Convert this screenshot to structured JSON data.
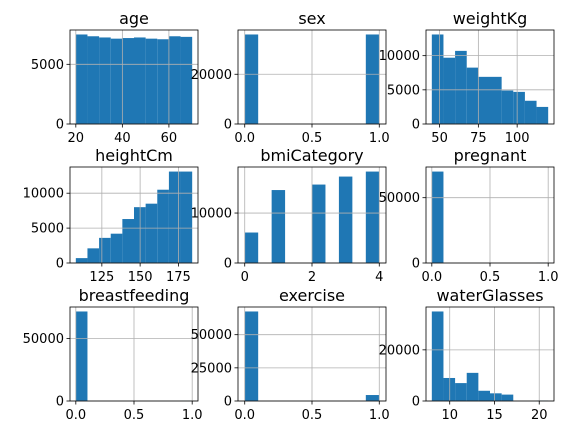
{
  "chart_data": [
    {
      "type": "bar",
      "title": "age",
      "bins": [
        [
          20,
          25,
          7500
        ],
        [
          25,
          30,
          7350
        ],
        [
          30,
          35,
          7250
        ],
        [
          35,
          40,
          7150
        ],
        [
          40,
          45,
          7200
        ],
        [
          45,
          50,
          7250
        ],
        [
          50,
          55,
          7150
        ],
        [
          55,
          60,
          7100
        ],
        [
          60,
          65,
          7350
        ],
        [
          65,
          70,
          7300
        ]
      ],
      "xlim": [
        17.5,
        72.5
      ],
      "ylim": [
        0,
        7875
      ],
      "xticks": [
        20,
        40,
        60
      ],
      "yticks": [
        0,
        5000
      ],
      "xtick_labels": [
        "20",
        "40",
        "60"
      ],
      "ytick_labels": [
        "0",
        "5000"
      ],
      "grid": true
    },
    {
      "type": "bar",
      "title": "sex",
      "bins": [
        [
          0,
          0.1,
          36000
        ],
        [
          0.1,
          0.2,
          0
        ],
        [
          0.2,
          0.3,
          0
        ],
        [
          0.3,
          0.4,
          0
        ],
        [
          0.4,
          0.5,
          0
        ],
        [
          0.5,
          0.6,
          0
        ],
        [
          0.6,
          0.7,
          0
        ],
        [
          0.7,
          0.8,
          0
        ],
        [
          0.8,
          0.9,
          0
        ],
        [
          0.9,
          1.0,
          36000
        ]
      ],
      "xlim": [
        -0.05,
        1.05
      ],
      "ylim": [
        0,
        37800
      ],
      "xticks": [
        0,
        0.5,
        1.0
      ],
      "yticks": [
        0,
        20000
      ],
      "xtick_labels": [
        "0.0",
        "0.5",
        "1.0"
      ],
      "ytick_labels": [
        "0",
        "20000"
      ],
      "grid": true
    },
    {
      "type": "bar",
      "title": "weightKg",
      "bins": [
        [
          45,
          52.5,
          13100
        ],
        [
          52.5,
          60,
          9700
        ],
        [
          60,
          67.5,
          10700
        ],
        [
          67.5,
          75,
          8250
        ],
        [
          75,
          82.5,
          6900
        ],
        [
          82.5,
          90,
          6900
        ],
        [
          90,
          97.5,
          4900
        ],
        [
          97.5,
          105,
          4700
        ],
        [
          105,
          112.5,
          3400
        ],
        [
          112.5,
          120,
          2500
        ]
      ],
      "xlim": [
        41.25,
        123.75
      ],
      "ylim": [
        0,
        13755
      ],
      "xticks": [
        50,
        75,
        100
      ],
      "yticks": [
        0,
        5000,
        10000
      ],
      "xtick_labels": [
        "50",
        "75",
        "100"
      ],
      "ytick_labels": [
        "0",
        "5000",
        "10000"
      ],
      "grid": true
    },
    {
      "type": "bar",
      "title": "heightCm",
      "bins": [
        [
          108,
          115.6,
          700
        ],
        [
          115.6,
          123.2,
          2100
        ],
        [
          123.2,
          130.8,
          3600
        ],
        [
          130.8,
          138.4,
          4200
        ],
        [
          138.4,
          146,
          6300
        ],
        [
          146,
          153.6,
          8000
        ],
        [
          153.6,
          161.2,
          8500
        ],
        [
          161.2,
          168.8,
          10500
        ],
        [
          168.8,
          176.4,
          13100
        ],
        [
          176.4,
          184,
          13100
        ]
      ],
      "xlim": [
        104.2,
        187.8
      ],
      "ylim": [
        0,
        13755
      ],
      "xticks": [
        125,
        150,
        175
      ],
      "yticks": [
        0,
        5000,
        10000
      ],
      "xtick_labels": [
        "125",
        "150",
        "175"
      ],
      "ytick_labels": [
        "0",
        "5000",
        "10000"
      ],
      "grid": true
    },
    {
      "type": "bar",
      "title": "bmiCategory",
      "bins": [
        [
          0,
          0.4,
          6100
        ],
        [
          0.4,
          0.8,
          0
        ],
        [
          0.8,
          1.2,
          14600
        ],
        [
          1.2,
          1.6,
          0
        ],
        [
          1.6,
          2.0,
          0
        ],
        [
          2.0,
          2.4,
          15700
        ],
        [
          2.4,
          2.8,
          0
        ],
        [
          2.8,
          3.2,
          17300
        ],
        [
          3.2,
          3.6,
          0
        ],
        [
          3.6,
          4.0,
          18300
        ]
      ],
      "xlim": [
        -0.2,
        4.2
      ],
      "ylim": [
        0,
        19215
      ],
      "xticks": [
        0,
        2,
        4
      ],
      "yticks": [
        0,
        10000
      ],
      "xtick_labels": [
        "0",
        "2",
        "4"
      ],
      "ytick_labels": [
        "0",
        "10000"
      ],
      "grid": true
    },
    {
      "type": "bar",
      "title": "pregnant",
      "bins": [
        [
          0,
          0.1,
          70000
        ],
        [
          0.1,
          0.2,
          0
        ],
        [
          0.2,
          0.3,
          0
        ],
        [
          0.3,
          0.4,
          0
        ],
        [
          0.4,
          0.5,
          0
        ],
        [
          0.5,
          0.6,
          0
        ],
        [
          0.6,
          0.7,
          0
        ],
        [
          0.7,
          0.8,
          0
        ],
        [
          0.8,
          0.9,
          0
        ],
        [
          0.9,
          1.0,
          300
        ]
      ],
      "xlim": [
        -0.05,
        1.05
      ],
      "ylim": [
        0,
        73500
      ],
      "xticks": [
        0,
        0.5,
        1.0
      ],
      "yticks": [
        0,
        50000
      ],
      "xtick_labels": [
        "0.0",
        "0.5",
        "1.0"
      ],
      "ytick_labels": [
        "0",
        "50000"
      ],
      "grid": true
    },
    {
      "type": "bar",
      "title": "breastfeeding",
      "bins": [
        [
          0,
          0.1,
          71500
        ],
        [
          0.1,
          0.2,
          0
        ],
        [
          0.2,
          0.3,
          0
        ],
        [
          0.3,
          0.4,
          0
        ],
        [
          0.4,
          0.5,
          0
        ],
        [
          0.5,
          0.6,
          0
        ],
        [
          0.6,
          0.7,
          0
        ],
        [
          0.7,
          0.8,
          0
        ],
        [
          0.8,
          0.9,
          0
        ],
        [
          0.9,
          1.0,
          200
        ]
      ],
      "xlim": [
        -0.05,
        1.05
      ],
      "ylim": [
        0,
        75075
      ],
      "xticks": [
        0,
        0.5,
        1.0
      ],
      "yticks": [
        0,
        50000
      ],
      "xtick_labels": [
        "0.0",
        "0.5",
        "1.0"
      ],
      "ytick_labels": [
        "0",
        "50000"
      ],
      "grid": true
    },
    {
      "type": "bar",
      "title": "exercise",
      "bins": [
        [
          0,
          0.1,
          67500
        ],
        [
          0.1,
          0.2,
          0
        ],
        [
          0.2,
          0.3,
          0
        ],
        [
          0.3,
          0.4,
          0
        ],
        [
          0.4,
          0.5,
          0
        ],
        [
          0.5,
          0.6,
          0
        ],
        [
          0.6,
          0.7,
          0
        ],
        [
          0.7,
          0.8,
          0
        ],
        [
          0.8,
          0.9,
          0
        ],
        [
          0.9,
          1.0,
          4500
        ]
      ],
      "xlim": [
        -0.05,
        1.05
      ],
      "ylim": [
        0,
        70875
      ],
      "xticks": [
        0,
        0.5,
        1.0
      ],
      "yticks": [
        0,
        25000,
        50000
      ],
      "xtick_labels": [
        "0.0",
        "0.5",
        "1.0"
      ],
      "ytick_labels": [
        "0",
        "25000",
        "50000"
      ],
      "grid": true
    },
    {
      "type": "bar",
      "title": "waterGlasses",
      "bins": [
        [
          8,
          9.3,
          35000
        ],
        [
          9.3,
          10.6,
          9000
        ],
        [
          10.6,
          11.9,
          7000
        ],
        [
          11.9,
          13.2,
          11000
        ],
        [
          13.2,
          14.5,
          4000
        ],
        [
          14.5,
          15.8,
          3000
        ],
        [
          15.8,
          17.1,
          2500
        ],
        [
          17.1,
          18.4,
          0
        ],
        [
          18.4,
          19.7,
          0
        ],
        [
          19.7,
          21,
          200
        ]
      ],
      "xlim": [
        7.35,
        21.65
      ],
      "ylim": [
        0,
        36750
      ],
      "xticks": [
        10,
        15,
        20
      ],
      "yticks": [
        0,
        20000
      ],
      "xtick_labels": [
        "10",
        "15",
        "20"
      ],
      "ytick_labels": [
        "0",
        "20000"
      ],
      "grid": true
    }
  ]
}
